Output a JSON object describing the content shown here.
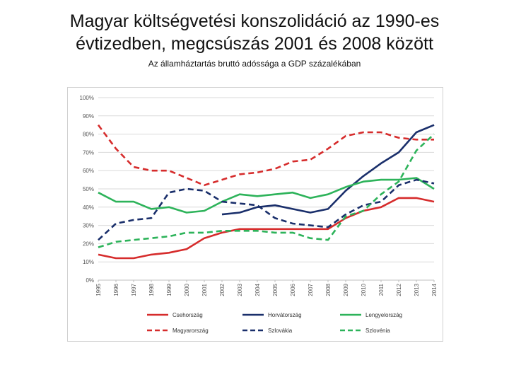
{
  "title_line1": "Magyar költségvetési konszolidáció az 1990-es",
  "title_line2": "évtizedben, megcsúszás 2001 és 2008 között",
  "subtitle": "Az államháztartás bruttó adóssága a GDP százalékában",
  "chart_data": {
    "type": "line",
    "x": [
      1995,
      1996,
      1997,
      1998,
      1999,
      2000,
      2001,
      2002,
      2003,
      2004,
      2005,
      2006,
      2007,
      2008,
      2009,
      2010,
      2011,
      2012,
      2013,
      2014
    ],
    "ylim": [
      0,
      100
    ],
    "yticks": [
      "0%",
      "10%",
      "20%",
      "30%",
      "40%",
      "50%",
      "60%",
      "70%",
      "80%",
      "90%",
      "100%"
    ],
    "grid": true,
    "legend_position": "bottom",
    "series": [
      {
        "name": "Csehország",
        "color": "#d62c2c",
        "dash": false,
        "values": [
          14,
          12,
          12,
          14,
          15,
          17,
          23,
          26,
          28,
          28,
          28,
          28,
          28,
          28,
          34,
          38,
          40,
          45,
          45,
          43
        ]
      },
      {
        "name": "Horvátország",
        "color": "#1a2f6b",
        "dash": false,
        "values": [
          null,
          null,
          null,
          null,
          null,
          null,
          null,
          36,
          37,
          40,
          41,
          39,
          37,
          39,
          49,
          57,
          64,
          70,
          81,
          85
        ]
      },
      {
        "name": "Lengyelország",
        "color": "#2db35a",
        "dash": false,
        "values": [
          48,
          43,
          43,
          39,
          40,
          37,
          38,
          43,
          47,
          46,
          47,
          48,
          45,
          47,
          51,
          54,
          55,
          55,
          56,
          50
        ]
      },
      {
        "name": "Magyarország",
        "color": "#d62c2c",
        "dash": true,
        "values": [
          85,
          72,
          62,
          60,
          60,
          56,
          52,
          55,
          58,
          59,
          61,
          65,
          66,
          72,
          79,
          81,
          81,
          78,
          77,
          77
        ]
      },
      {
        "name": "Szlovákia",
        "color": "#1a2f6b",
        "dash": true,
        "values": [
          22,
          31,
          33,
          34,
          48,
          50,
          49,
          43,
          42,
          41,
          34,
          31,
          30,
          29,
          36,
          41,
          43,
          52,
          55,
          53
        ]
      },
      {
        "name": "Szlovénia",
        "color": "#2db35a",
        "dash": true,
        "values": [
          18,
          21,
          22,
          23,
          24,
          26,
          26,
          27,
          27,
          27,
          26,
          26,
          23,
          22,
          35,
          38,
          47,
          54,
          71,
          80
        ]
      }
    ]
  }
}
